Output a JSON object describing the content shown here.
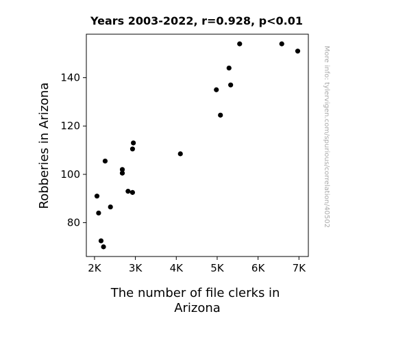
{
  "chart_data": {
    "type": "scatter",
    "title": "Years 2003-2022, r=0.928, p<0.01",
    "xlabel_lines": [
      "The number of file clerks in",
      "Arizona"
    ],
    "ylabel": "Robberies in Arizona",
    "side_note": "More info: tylervigen.com/spurious/correlation/40502",
    "xlim": [
      1800,
      7230
    ],
    "ylim": [
      66,
      158
    ],
    "xticks": [
      {
        "value": 2000,
        "label": "2K"
      },
      {
        "value": 3000,
        "label": "3K"
      },
      {
        "value": 4000,
        "label": "4K"
      },
      {
        "value": 5000,
        "label": "5K"
      },
      {
        "value": 6000,
        "label": "6K"
      },
      {
        "value": 7000,
        "label": "7K"
      }
    ],
    "yticks": [
      {
        "value": 80,
        "label": "80"
      },
      {
        "value": 100,
        "label": "100"
      },
      {
        "value": 120,
        "label": "120"
      },
      {
        "value": 140,
        "label": "140"
      }
    ],
    "grid": false,
    "marker_color": "#000000",
    "points": [
      {
        "x": 2060,
        "y": 91
      },
      {
        "x": 2100,
        "y": 84
      },
      {
        "x": 2160,
        "y": 72.5
      },
      {
        "x": 2220,
        "y": 70
      },
      {
        "x": 2260,
        "y": 105.5
      },
      {
        "x": 2390,
        "y": 86.5
      },
      {
        "x": 2680,
        "y": 102
      },
      {
        "x": 2680,
        "y": 100.5
      },
      {
        "x": 2820,
        "y": 93
      },
      {
        "x": 2930,
        "y": 92.5
      },
      {
        "x": 2930,
        "y": 110.5
      },
      {
        "x": 2950,
        "y": 113
      },
      {
        "x": 4100,
        "y": 108.5
      },
      {
        "x": 4980,
        "y": 135
      },
      {
        "x": 5080,
        "y": 124.5
      },
      {
        "x": 5290,
        "y": 144
      },
      {
        "x": 5330,
        "y": 137
      },
      {
        "x": 5550,
        "y": 154
      },
      {
        "x": 6580,
        "y": 154
      },
      {
        "x": 6970,
        "y": 151
      }
    ]
  }
}
